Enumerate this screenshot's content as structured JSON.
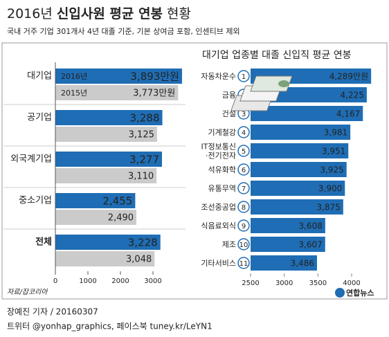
{
  "header": {
    "title_prefix": "2016년",
    "title": "신입사원 평균 연봉",
    "title_suffix": "현황",
    "subtitle": "국내 거주 기업 301개사 4년 대졸 기준, 기본 상여금 포함, 인센티브 제외"
  },
  "chart_data": [
    {
      "type": "bar",
      "categories": [
        "대기업",
        "공기업",
        "외국계기업",
        "중소기업",
        "전체"
      ],
      "series": [
        {
          "name": "2016년",
          "color": "#1f6db4",
          "values": [
            3893,
            3288,
            3277,
            2455,
            3228
          ],
          "value_labels": [
            "3,893만원",
            "3,288",
            "3,277",
            "2,455",
            "3,228"
          ]
        },
        {
          "name": "2015년",
          "color": "#cbcbcb",
          "values": [
            3773,
            3125,
            3110,
            2490,
            3048
          ],
          "value_labels": [
            "3,773만원",
            "3,125",
            "3,110",
            "2,490",
            "3,048"
          ]
        }
      ],
      "xlim": [
        0,
        4000
      ],
      "xticks": [
        0,
        1000,
        2000,
        3000
      ],
      "source": "자료/잡코리아"
    },
    {
      "type": "bar",
      "title": "대기업 업종별 대졸 신입직 평균 연봉",
      "categories": [
        "자동차운수",
        "금융",
        "건설",
        "기계철강",
        "IT정보통신\n·전기전자",
        "석유화학",
        "유통무역",
        "조선중공업",
        "식음료외식",
        "제조",
        "기타서비스"
      ],
      "rank_labels": [
        "1",
        "2",
        "3",
        "4",
        "5",
        "6",
        "7",
        "8",
        "9",
        "10",
        "11"
      ],
      "values": [
        4289,
        4225,
        4167,
        3981,
        3951,
        3925,
        3900,
        3875,
        3608,
        3607,
        3486
      ],
      "value_labels": [
        "4,289만원",
        "4,225",
        "4,167",
        "3,981",
        "3,951",
        "3,925",
        "3,900",
        "3,875",
        "3,608",
        "3,607",
        "3,486"
      ],
      "color": "#1f6db4",
      "xlim": [
        2500,
        4380
      ],
      "xticks": [
        2500,
        3000,
        3500,
        4000
      ]
    }
  ],
  "footer": {
    "byline": "장예진 기자 / 20160307",
    "social": "트위터 @yonhap_graphics, 페이스북 tuney.kr/LeYN1",
    "logo": "연합뉴스"
  }
}
